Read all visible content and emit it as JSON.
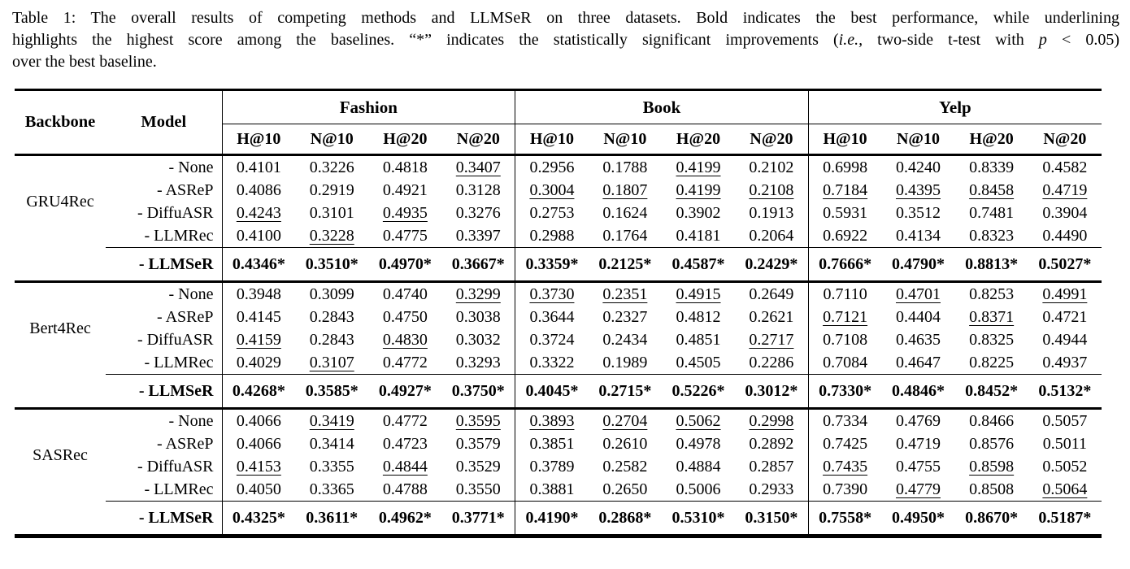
{
  "caption": {
    "lines": [
      {
        "j": true,
        "parts": [
          {
            "t": "Table 1: The overall results of competing methods and LLMSeR on three datasets. Bold indicates the best performance, while underlining"
          }
        ]
      },
      {
        "j": true,
        "parts": [
          {
            "t": "highlights the highest score among the baselines. “*” indicates the statistically significant improvements ("
          },
          {
            "t": "i.e.,",
            "i": true
          },
          {
            "t": " two-side t-test with "
          },
          {
            "t": "p",
            "i": true
          },
          {
            "t": " < 0.05)"
          }
        ]
      },
      {
        "j": false,
        "parts": [
          {
            "t": "over the best baseline."
          }
        ]
      }
    ]
  },
  "table": {
    "header": {
      "backbone": "Backbone",
      "model": "Model",
      "datasets": [
        "Fashion",
        "Book",
        "Yelp"
      ],
      "metrics": [
        "H@10",
        "N@10",
        "H@20",
        "N@20"
      ]
    },
    "groups": [
      {
        "backbone": "GRU4Rec",
        "baselines": [
          {
            "model": "- None",
            "cells": [
              {
                "t": "0.4101"
              },
              {
                "t": "0.3226"
              },
              {
                "t": "0.4818"
              },
              {
                "t": "0.3407",
                "u": 1
              },
              {
                "t": "0.2956"
              },
              {
                "t": "0.1788"
              },
              {
                "t": "0.4199",
                "u": 1
              },
              {
                "t": "0.2102"
              },
              {
                "t": "0.6998"
              },
              {
                "t": "0.4240"
              },
              {
                "t": "0.8339"
              },
              {
                "t": "0.4582"
              }
            ]
          },
          {
            "model": "- ASReP",
            "cells": [
              {
                "t": "0.4086"
              },
              {
                "t": "0.2919"
              },
              {
                "t": "0.4921"
              },
              {
                "t": "0.3128"
              },
              {
                "t": "0.3004",
                "u": 1
              },
              {
                "t": "0.1807",
                "u": 1
              },
              {
                "t": "0.4199",
                "u": 1
              },
              {
                "t": "0.2108",
                "u": 1
              },
              {
                "t": "0.7184",
                "u": 1
              },
              {
                "t": "0.4395",
                "u": 1
              },
              {
                "t": "0.8458",
                "u": 1
              },
              {
                "t": "0.4719",
                "u": 1
              }
            ]
          },
          {
            "model": "- DiffuASR",
            "cells": [
              {
                "t": "0.4243",
                "u": 1
              },
              {
                "t": "0.3101"
              },
              {
                "t": "0.4935",
                "u": 1
              },
              {
                "t": "0.3276"
              },
              {
                "t": "0.2753"
              },
              {
                "t": "0.1624"
              },
              {
                "t": "0.3902"
              },
              {
                "t": "0.1913"
              },
              {
                "t": "0.5931"
              },
              {
                "t": "0.3512"
              },
              {
                "t": "0.7481"
              },
              {
                "t": "0.3904"
              }
            ]
          },
          {
            "model": "- LLMRec",
            "cells": [
              {
                "t": "0.4100"
              },
              {
                "t": "0.3228",
                "u": 1
              },
              {
                "t": "0.4775"
              },
              {
                "t": "0.3397"
              },
              {
                "t": "0.2988"
              },
              {
                "t": "0.1764"
              },
              {
                "t": "0.4181"
              },
              {
                "t": "0.2064"
              },
              {
                "t": "0.6922"
              },
              {
                "t": "0.4134"
              },
              {
                "t": "0.8323"
              },
              {
                "t": "0.4490"
              }
            ]
          }
        ],
        "llmser": {
          "model": "- LLMSeR",
          "cells": [
            "0.4346*",
            "0.3510*",
            "0.4970*",
            "0.3667*",
            "0.3359*",
            "0.2125*",
            "0.4587*",
            "0.2429*",
            "0.7666*",
            "0.4790*",
            "0.8813*",
            "0.5027*"
          ]
        }
      },
      {
        "backbone": "Bert4Rec",
        "baselines": [
          {
            "model": "- None",
            "cells": [
              {
                "t": "0.3948"
              },
              {
                "t": "0.3099"
              },
              {
                "t": "0.4740"
              },
              {
                "t": "0.3299",
                "u": 1
              },
              {
                "t": "0.3730",
                "u": 1
              },
              {
                "t": "0.2351",
                "u": 1
              },
              {
                "t": "0.4915",
                "u": 1
              },
              {
                "t": "0.2649"
              },
              {
                "t": "0.7110"
              },
              {
                "t": "0.4701",
                "u": 1
              },
              {
                "t": "0.8253"
              },
              {
                "t": "0.4991",
                "u": 1
              }
            ]
          },
          {
            "model": "- ASReP",
            "cells": [
              {
                "t": "0.4145"
              },
              {
                "t": "0.2843"
              },
              {
                "t": "0.4750"
              },
              {
                "t": "0.3038"
              },
              {
                "t": "0.3644"
              },
              {
                "t": "0.2327"
              },
              {
                "t": "0.4812"
              },
              {
                "t": "0.2621"
              },
              {
                "t": "0.7121",
                "u": 1
              },
              {
                "t": "0.4404"
              },
              {
                "t": "0.8371",
                "u": 1
              },
              {
                "t": "0.4721"
              }
            ]
          },
          {
            "model": "- DiffuASR",
            "cells": [
              {
                "t": "0.4159",
                "u": 1
              },
              {
                "t": "0.2843"
              },
              {
                "t": "0.4830",
                "u": 1
              },
              {
                "t": "0.3032"
              },
              {
                "t": "0.3724"
              },
              {
                "t": "0.2434"
              },
              {
                "t": "0.4851"
              },
              {
                "t": "0.2717",
                "u": 1
              },
              {
                "t": "0.7108"
              },
              {
                "t": "0.4635"
              },
              {
                "t": "0.8325"
              },
              {
                "t": "0.4944"
              }
            ]
          },
          {
            "model": "- LLMRec",
            "cells": [
              {
                "t": "0.4029"
              },
              {
                "t": "0.3107",
                "u": 1
              },
              {
                "t": "0.4772"
              },
              {
                "t": "0.3293"
              },
              {
                "t": "0.3322"
              },
              {
                "t": "0.1989"
              },
              {
                "t": "0.4505"
              },
              {
                "t": "0.2286"
              },
              {
                "t": "0.7084"
              },
              {
                "t": "0.4647"
              },
              {
                "t": "0.8225"
              },
              {
                "t": "0.4937"
              }
            ]
          }
        ],
        "llmser": {
          "model": "- LLMSeR",
          "cells": [
            "0.4268*",
            "0.3585*",
            "0.4927*",
            "0.3750*",
            "0.4045*",
            "0.2715*",
            "0.5226*",
            "0.3012*",
            "0.7330*",
            "0.4846*",
            "0.8452*",
            "0.5132*"
          ]
        }
      },
      {
        "backbone": "SASRec",
        "baselines": [
          {
            "model": "- None",
            "cells": [
              {
                "t": "0.4066"
              },
              {
                "t": "0.3419",
                "u": 1
              },
              {
                "t": "0.4772"
              },
              {
                "t": "0.3595",
                "u": 1
              },
              {
                "t": "0.3893",
                "u": 1
              },
              {
                "t": "0.2704",
                "u": 1
              },
              {
                "t": "0.5062",
                "u": 1
              },
              {
                "t": "0.2998",
                "u": 1
              },
              {
                "t": "0.7334"
              },
              {
                "t": "0.4769"
              },
              {
                "t": "0.8466"
              },
              {
                "t": "0.5057"
              }
            ]
          },
          {
            "model": "- ASReP",
            "cells": [
              {
                "t": "0.4066"
              },
              {
                "t": "0.3414"
              },
              {
                "t": "0.4723"
              },
              {
                "t": "0.3579"
              },
              {
                "t": "0.3851"
              },
              {
                "t": "0.2610"
              },
              {
                "t": "0.4978"
              },
              {
                "t": "0.2892"
              },
              {
                "t": "0.7425"
              },
              {
                "t": "0.4719"
              },
              {
                "t": "0.8576"
              },
              {
                "t": "0.5011"
              }
            ]
          },
          {
            "model": "- DiffuASR",
            "cells": [
              {
                "t": "0.4153",
                "u": 1
              },
              {
                "t": "0.3355"
              },
              {
                "t": "0.4844",
                "u": 1
              },
              {
                "t": "0.3529"
              },
              {
                "t": "0.3789"
              },
              {
                "t": "0.2582"
              },
              {
                "t": "0.4884"
              },
              {
                "t": "0.2857"
              },
              {
                "t": "0.7435",
                "u": 1
              },
              {
                "t": "0.4755"
              },
              {
                "t": "0.8598",
                "u": 1
              },
              {
                "t": "0.5052"
              }
            ]
          },
          {
            "model": "- LLMRec",
            "cells": [
              {
                "t": "0.4050"
              },
              {
                "t": "0.3365"
              },
              {
                "t": "0.4788"
              },
              {
                "t": "0.3550"
              },
              {
                "t": "0.3881"
              },
              {
                "t": "0.2650"
              },
              {
                "t": "0.5006"
              },
              {
                "t": "0.2933"
              },
              {
                "t": "0.7390"
              },
              {
                "t": "0.4779",
                "u": 1
              },
              {
                "t": "0.8508"
              },
              {
                "t": "0.5064",
                "u": 1
              }
            ]
          }
        ],
        "llmser": {
          "model": "- LLMSeR",
          "cells": [
            "0.4325*",
            "0.3611*",
            "0.4962*",
            "0.3771*",
            "0.4190*",
            "0.2868*",
            "0.5310*",
            "0.3150*",
            "0.7558*",
            "0.4950*",
            "0.8670*",
            "0.5187*"
          ]
        }
      }
    ]
  }
}
